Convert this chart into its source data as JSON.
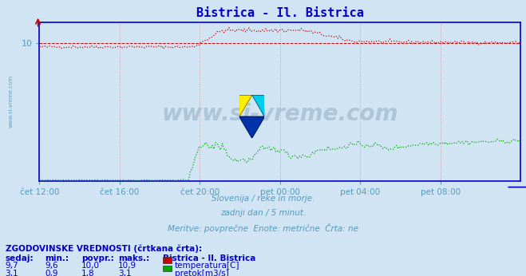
{
  "title": "Bistrica - Il. Bistrica",
  "title_color": "#0000cc",
  "bg_color": "#d0e4f4",
  "plot_bg_color": "#d0e4f4",
  "grid_color_h": "#cc0000",
  "grid_color_v": "#dd9999",
  "watermark_text": "www.si-vreme.com",
  "watermark_color": "#a0b8cc",
  "subtitle_lines": [
    "Slovenija / reke in morje.",
    "zadnji dan / 5 minut.",
    "Meritve: povprečne  Enote: metrične  Črta: ne"
  ],
  "subtitle_color": "#5599bb",
  "x_tick_labels": [
    "čet 12:00",
    "čet 16:00",
    "čet 20:00",
    "pet 00:00",
    "pet 04:00",
    "pet 08:00"
  ],
  "temp_color": "#cc0000",
  "flow_color": "#00aa00",
  "axis_color": "#0000cc",
  "tick_color": "#5599bb",
  "table_header": "ZGODOVINSKE VREDNOSTI (črtkana črta):",
  "table_cols": [
    "sedaj:",
    "min.:",
    "povpr.:",
    "maks.:"
  ],
  "table_rows": [
    {
      "values": [
        "9,7",
        "9,6",
        "10,0",
        "10,9"
      ],
      "label": "temperatura[C]",
      "color": "#cc0000"
    },
    {
      "values": [
        "3,1",
        "0,9",
        "1,8",
        "3,1"
      ],
      "label": "pretok[m3/s]",
      "color": "#00aa00"
    }
  ],
  "station_label": "Bistrica - Il. Bistrica",
  "legend_text_color": "#0000cc",
  "n_points": 288,
  "ylim_min": 0,
  "ylim_max": 11.5
}
